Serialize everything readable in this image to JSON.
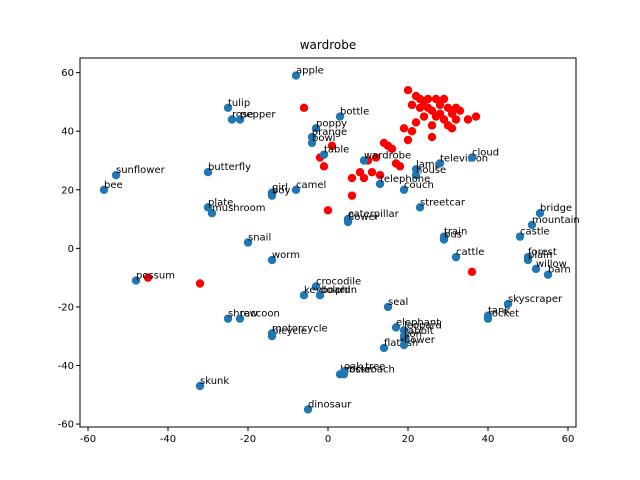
{
  "chart_data": {
    "type": "scatter",
    "title": "wardrobe",
    "xlabel": "",
    "ylabel": "",
    "xlim": [
      -62,
      62
    ],
    "ylim": [
      -61,
      65
    ],
    "xticks": [
      -60,
      -40,
      -20,
      0,
      20,
      40,
      60
    ],
    "yticks": [
      -60,
      -40,
      -20,
      0,
      20,
      40,
      60
    ],
    "grid": false,
    "colors": {
      "labeled": "#1f77b4",
      "highlight": "#ff0000"
    },
    "labeled_points": [
      {
        "label": "apple",
        "x": -8,
        "y": 59
      },
      {
        "label": "tulip",
        "x": -25,
        "y": 48
      },
      {
        "label": "rose",
        "x": -24,
        "y": 44
      },
      {
        "label": "pepper",
        "x": -22,
        "y": 44
      },
      {
        "label": "bottle",
        "x": 3,
        "y": 45
      },
      {
        "label": "poppy",
        "x": -3,
        "y": 41
      },
      {
        "label": "orange",
        "x": -4,
        "y": 38
      },
      {
        "label": "bowl",
        "x": -4,
        "y": 36
      },
      {
        "label": "table",
        "x": -1,
        "y": 32
      },
      {
        "label": "wardrobe",
        "x": 9,
        "y": 30
      },
      {
        "label": "lamp",
        "x": 22,
        "y": 27
      },
      {
        "label": "house",
        "x": 22,
        "y": 25
      },
      {
        "label": "television",
        "x": 28,
        "y": 29
      },
      {
        "label": "cloud",
        "x": 36,
        "y": 31
      },
      {
        "label": "sunflower",
        "x": -53,
        "y": 25
      },
      {
        "label": "bee",
        "x": -56,
        "y": 20
      },
      {
        "label": "butterfly",
        "x": -30,
        "y": 26
      },
      {
        "label": "telephone",
        "x": 13,
        "y": 22
      },
      {
        "label": "couch",
        "x": 19,
        "y": 20
      },
      {
        "label": "girl",
        "x": -14,
        "y": 19
      },
      {
        "label": "camel",
        "x": -8,
        "y": 20
      },
      {
        "label": "boy",
        "x": -14,
        "y": 18
      },
      {
        "label": "plate",
        "x": -30,
        "y": 14
      },
      {
        "label": "mushroom",
        "x": -29,
        "y": 12
      },
      {
        "label": "streetcar",
        "x": 23,
        "y": 14
      },
      {
        "label": "caterpillar",
        "x": 5,
        "y": 10
      },
      {
        "label": "flower",
        "x": 5,
        "y": 9
      },
      {
        "label": "bridge",
        "x": 53,
        "y": 12
      },
      {
        "label": "mountain",
        "x": 51,
        "y": 8
      },
      {
        "label": "castle",
        "x": 48,
        "y": 4
      },
      {
        "label": "snail",
        "x": -20,
        "y": 2
      },
      {
        "label": "train",
        "x": 29,
        "y": 4
      },
      {
        "label": "bus",
        "x": 29,
        "y": 3
      },
      {
        "label": "cattle",
        "x": 32,
        "y": -3
      },
      {
        "label": "forest",
        "x": 50,
        "y": -3
      },
      {
        "label": "plain",
        "x": 50,
        "y": -4
      },
      {
        "label": "willow",
        "x": 52,
        "y": -7
      },
      {
        "label": "worm",
        "x": -14,
        "y": -4
      },
      {
        "label": "barn",
        "x": 55,
        "y": -9
      },
      {
        "label": "possum",
        "x": -48,
        "y": -11
      },
      {
        "label": "crocodile",
        "x": -3,
        "y": -13
      },
      {
        "label": "keyboard",
        "x": -6,
        "y": -16
      },
      {
        "label": "dolphin",
        "x": -2,
        "y": -16
      },
      {
        "label": "seal",
        "x": 15,
        "y": -20
      },
      {
        "label": "skyscraper",
        "x": 45,
        "y": -19
      },
      {
        "label": "rocket",
        "x": 40,
        "y": -24
      },
      {
        "label": "tank",
        "x": 40,
        "y": -23
      },
      {
        "label": "shrew",
        "x": -25,
        "y": -24
      },
      {
        "label": "raccoon",
        "x": -22,
        "y": -24
      },
      {
        "label": "elephant",
        "x": 17,
        "y": -27
      },
      {
        "label": "leopard",
        "x": 19,
        "y": -28
      },
      {
        "label": "rabbit",
        "x": 19,
        "y": -30
      },
      {
        "label": "lion",
        "x": 19,
        "y": -31
      },
      {
        "label": "flatfish",
        "x": 14,
        "y": -34
      },
      {
        "label": "flower",
        "x": 19,
        "y": -33
      },
      {
        "label": "bicycle",
        "x": -14,
        "y": -30
      },
      {
        "label": "motorcycle",
        "x": -14,
        "y": -29
      },
      {
        "label": "lobster",
        "x": 3,
        "y": -43
      },
      {
        "label": "cockroach",
        "x": 4,
        "y": -43
      },
      {
        "label": "oak tree",
        "x": 4,
        "y": -42
      },
      {
        "label": "skunk",
        "x": -32,
        "y": -47
      },
      {
        "label": "dinosaur",
        "x": -5,
        "y": -55
      }
    ],
    "highlight_points": [
      {
        "x": -6,
        "y": 48
      },
      {
        "x": -2,
        "y": 31
      },
      {
        "x": -1,
        "y": 28
      },
      {
        "x": 0,
        "y": 13
      },
      {
        "x": 6,
        "y": 18
      },
      {
        "x": 6,
        "y": 24
      },
      {
        "x": 8,
        "y": 26
      },
      {
        "x": 9,
        "y": 24
      },
      {
        "x": 10,
        "y": 30
      },
      {
        "x": 11,
        "y": 26
      },
      {
        "x": 12,
        "y": 31
      },
      {
        "x": 13,
        "y": 25
      },
      {
        "x": 14,
        "y": 36
      },
      {
        "x": 15,
        "y": 35
      },
      {
        "x": 16,
        "y": 34
      },
      {
        "x": 17,
        "y": 29
      },
      {
        "x": 18,
        "y": 28
      },
      {
        "x": 20,
        "y": 37
      },
      {
        "x": 20,
        "y": 54
      },
      {
        "x": 21,
        "y": 49
      },
      {
        "x": 22,
        "y": 43
      },
      {
        "x": 22,
        "y": 52
      },
      {
        "x": 23,
        "y": 51
      },
      {
        "x": 23,
        "y": 48
      },
      {
        "x": 24,
        "y": 50
      },
      {
        "x": 24,
        "y": 45
      },
      {
        "x": 25,
        "y": 51
      },
      {
        "x": 25,
        "y": 48
      },
      {
        "x": 26,
        "y": 47
      },
      {
        "x": 26,
        "y": 42
      },
      {
        "x": 27,
        "y": 51
      },
      {
        "x": 27,
        "y": 45
      },
      {
        "x": 28,
        "y": 49
      },
      {
        "x": 28,
        "y": 46
      },
      {
        "x": 29,
        "y": 51
      },
      {
        "x": 29,
        "y": 44
      },
      {
        "x": 30,
        "y": 48
      },
      {
        "x": 30,
        "y": 42
      },
      {
        "x": 31,
        "y": 46
      },
      {
        "x": 31,
        "y": 41
      },
      {
        "x": 32,
        "y": 48
      },
      {
        "x": 32,
        "y": 44
      },
      {
        "x": 33,
        "y": 47
      },
      {
        "x": 35,
        "y": 44
      },
      {
        "x": 37,
        "y": 45
      },
      {
        "x": 26,
        "y": 38
      },
      {
        "x": 21,
        "y": 40
      },
      {
        "x": 19,
        "y": 41
      },
      {
        "x": 36,
        "y": -8
      },
      {
        "x": -45,
        "y": -10
      },
      {
        "x": -32,
        "y": -12
      },
      {
        "x": 1,
        "y": 35
      }
    ]
  }
}
